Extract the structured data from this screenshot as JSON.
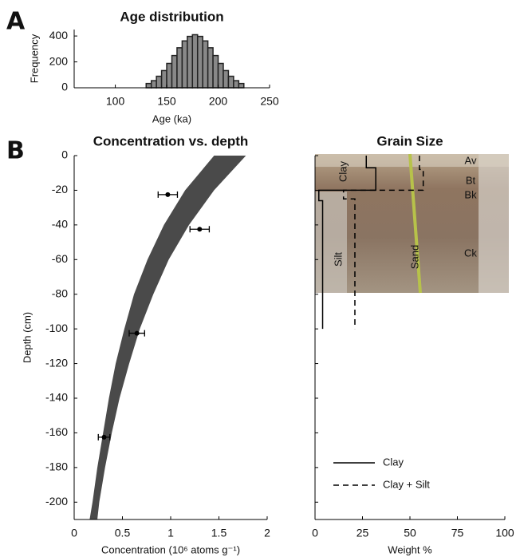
{
  "panel_labels": [
    "A",
    "B"
  ],
  "chart_data": [
    {
      "type": "histogram",
      "title": "Age distribution",
      "xlabel": "Age (ka)",
      "ylabel": "Frequency",
      "xlim": [
        60,
        250
      ],
      "xticks": [
        100,
        150,
        200,
        250
      ],
      "ylim": [
        0,
        450
      ],
      "yticks": [
        0,
        200,
        400
      ],
      "color": "#888888",
      "edgecolor": "#222222",
      "bins": [
        130,
        135,
        140,
        145,
        150,
        155,
        160,
        165,
        170,
        175,
        180,
        185,
        190,
        195,
        200,
        205,
        210,
        215,
        220,
        225
      ],
      "values": [
        33,
        55,
        89,
        133,
        188,
        249,
        309,
        362,
        397,
        410,
        397,
        362,
        309,
        249,
        188,
        133,
        89,
        55,
        33
      ]
    },
    {
      "type": "scatter",
      "title": "Concentration vs. depth",
      "xlabel": "Concentration (10⁶ atoms g⁻¹)",
      "ylabel": "Depth (cm)",
      "xlim": [
        0,
        2
      ],
      "xticks": [
        0,
        0.5,
        1,
        1.5,
        2
      ],
      "ylim": [
        -210,
        0
      ],
      "yticks": [
        0,
        -20,
        -40,
        -60,
        -80,
        -100,
        -120,
        -140,
        -160,
        -180,
        -200
      ],
      "band": {
        "color": "#4a4a4a",
        "y": [
          0,
          -20,
          -40,
          -60,
          -80,
          -100,
          -120,
          -140,
          -160,
          -180,
          -200,
          -210
        ],
        "x_low": [
          1.45,
          1.15,
          0.93,
          0.76,
          0.62,
          0.52,
          0.43,
          0.36,
          0.3,
          0.24,
          0.19,
          0.16
        ],
        "x_high": [
          1.78,
          1.45,
          1.19,
          0.98,
          0.82,
          0.68,
          0.57,
          0.47,
          0.39,
          0.32,
          0.26,
          0.24
        ]
      },
      "series": [
        {
          "color": "#000000",
          "x": [
            0.97,
            1.3,
            0.65,
            0.31
          ],
          "values": [
            -22.5,
            -42.5,
            -102.5,
            -162.5
          ],
          "xerr": [
            0.1,
            0.1,
            0.08,
            0.06
          ]
        }
      ]
    },
    {
      "type": "line",
      "title": "Grain Size",
      "xlabel": "Weight %",
      "xlim": [
        0,
        100
      ],
      "xticks": [
        0,
        25,
        50,
        75,
        100
      ],
      "ylim": [
        -210,
        0
      ],
      "legend": "lower left",
      "annotations": [
        "Clay",
        "Silt",
        "Sand",
        "Av",
        "Bt",
        "Bk",
        "Ck"
      ],
      "series": [
        {
          "name": "Clay",
          "color": "#000000",
          "dashed": false,
          "x": [
            27,
            27,
            32,
            32,
            2,
            2,
            4,
            4
          ],
          "values": [
            0,
            -7,
            -7,
            -20,
            -20,
            -26,
            -26,
            -100
          ]
        },
        {
          "name": "Clay + Silt",
          "color": "#000000",
          "dashed": true,
          "x": [
            55,
            55,
            57,
            57,
            15,
            15,
            21,
            21
          ],
          "values": [
            0,
            -8,
            -8,
            -20,
            -20,
            -25,
            -25,
            -100
          ]
        }
      ]
    }
  ]
}
